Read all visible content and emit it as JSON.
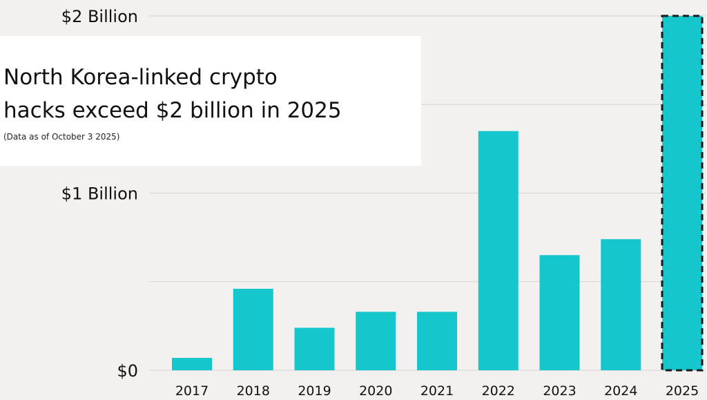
{
  "chart_data": {
    "type": "bar",
    "title": "North Korea-linked crypto\nhacks exceed $2 billion in 2025",
    "subtitle": "(Data as of October 3 2025)",
    "categories": [
      "2017",
      "2018",
      "2019",
      "2020",
      "2021",
      "2022",
      "2023",
      "2024",
      "2025"
    ],
    "values": [
      0.07,
      0.46,
      0.24,
      0.33,
      0.33,
      1.35,
      0.65,
      0.74,
      2.0
    ],
    "unit": "billion USD",
    "ylim": [
      0,
      2
    ],
    "y_ticks": [
      {
        "value": 0,
        "label": "$0"
      },
      {
        "value": 1,
        "label": "$1 Billion"
      },
      {
        "value": 2,
        "label": "$2 Billion"
      }
    ],
    "gridlines": [
      0.5,
      1,
      1.5,
      2
    ],
    "grid": true,
    "highlight_category": "2025",
    "colors": {
      "bar": "#16c6cd",
      "highlight_border": "#1a1a1a",
      "grid": "#d4d4d4",
      "background": "#f2f1ef",
      "title_box": "#ffffff",
      "text": "#111111"
    }
  }
}
